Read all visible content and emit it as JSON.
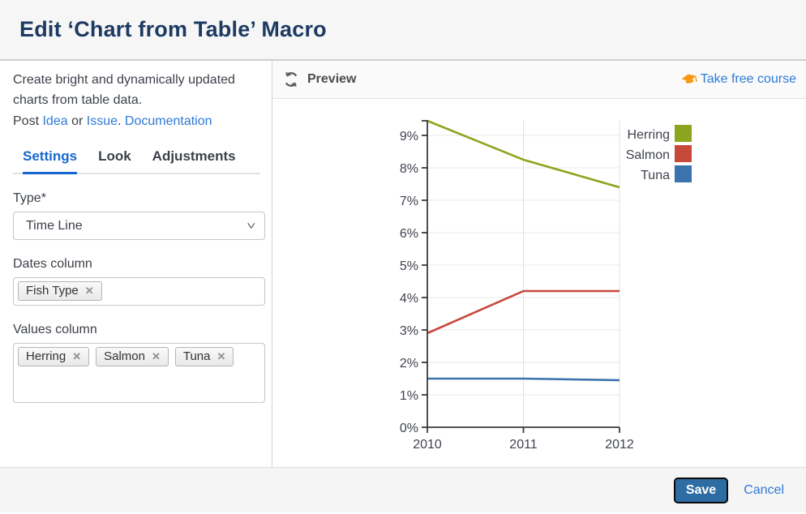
{
  "dialog": {
    "title": "Edit ‘Chart from Table’ Macro"
  },
  "sidebar": {
    "description": "Create bright and dynamically updated charts from table data.",
    "post": {
      "prefix": "Post",
      "idea": "Idea",
      "or": "or",
      "issue": "Issue",
      "period": ".",
      "documentation": "Documentation"
    },
    "tabs": [
      {
        "label": "Settings",
        "active": true
      },
      {
        "label": "Look",
        "active": false
      },
      {
        "label": "Adjustments",
        "active": false
      }
    ],
    "form": {
      "type_label": "Type*",
      "type_value": "Time Line",
      "dates_label": "Dates column",
      "dates_tags": [
        "Fish Type"
      ],
      "values_label": "Values column",
      "values_tags": [
        "Herring",
        "Salmon",
        "Tuna"
      ]
    }
  },
  "preview": {
    "title": "Preview",
    "course_link": "Take free course"
  },
  "footer": {
    "save_label": "Save",
    "cancel_label": "Cancel"
  },
  "colors": {
    "link": "#2e7ad7",
    "active_tab": "#1667d1",
    "save_button": "#2e6da4",
    "course_icon": "#f6980f"
  },
  "chart_data": {
    "type": "line",
    "x": [
      "2010",
      "2011",
      "2012"
    ],
    "series": [
      {
        "name": "Herring",
        "color": "#8CA51F",
        "values": [
          9.45,
          8.25,
          7.4
        ]
      },
      {
        "name": "Salmon",
        "color": "#C7493B",
        "values": [
          2.9,
          4.2,
          4.2
        ]
      },
      {
        "name": "Tuna",
        "color": "#3B73AF",
        "values": [
          1.5,
          1.5,
          1.45
        ]
      }
    ],
    "ylim": [
      0,
      9.45
    ],
    "ytick_step": 1,
    "ytick_suffix": "%",
    "xlabel": "",
    "ylabel": "",
    "grid": true,
    "legend_position": "top-right"
  }
}
